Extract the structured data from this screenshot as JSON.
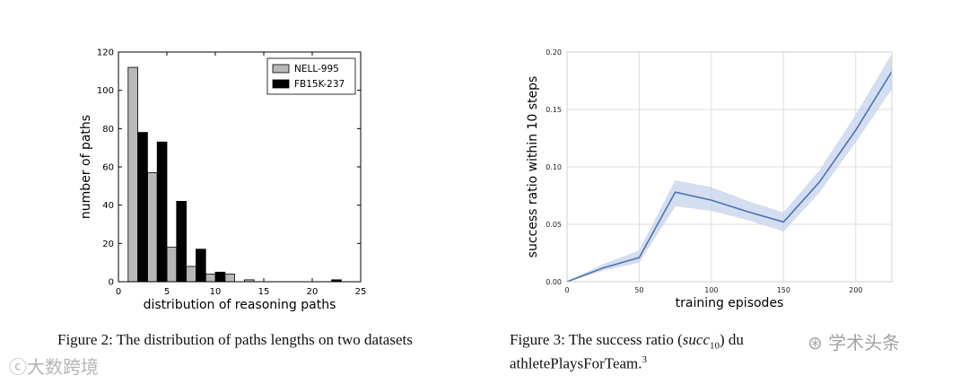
{
  "chart_data": [
    {
      "type": "bar",
      "xlabel": "distribution of reasoning paths",
      "ylabel": "number of paths",
      "xlim": [
        0,
        25
      ],
      "ylim": [
        0,
        120
      ],
      "xticks": [
        0,
        5,
        10,
        15,
        20,
        25
      ],
      "yticks": [
        0,
        20,
        40,
        60,
        80,
        100,
        120
      ],
      "legend_position": "top-right",
      "grid": false,
      "series": [
        {
          "name": "NELL-995",
          "color": "#b8b8b8",
          "points": [
            [
              2,
              112
            ],
            [
              4,
              57
            ],
            [
              6,
              18
            ],
            [
              8,
              8
            ],
            [
              10,
              4
            ],
            [
              12,
              4
            ],
            [
              14,
              1
            ],
            [
              16,
              0
            ],
            [
              18,
              0
            ],
            [
              20,
              0
            ],
            [
              22,
              0
            ]
          ]
        },
        {
          "name": "FB15K-237",
          "color": "#000000",
          "points": [
            [
              2,
              78
            ],
            [
              4,
              73
            ],
            [
              6,
              42
            ],
            [
              8,
              17
            ],
            [
              10,
              5
            ],
            [
              12,
              0
            ],
            [
              14,
              0
            ],
            [
              16,
              0
            ],
            [
              18,
              0
            ],
            [
              20,
              0
            ],
            [
              22,
              1
            ]
          ]
        }
      ]
    },
    {
      "type": "line",
      "xlabel": "training episodes",
      "ylabel": "success ratio within 10 steps",
      "xlim": [
        0,
        225
      ],
      "ylim": [
        0,
        0.2
      ],
      "xticks": [
        0,
        50,
        100,
        150,
        200
      ],
      "yticks": [
        "0.00",
        "0.05",
        "0.10",
        "0.15",
        "0.20"
      ],
      "grid": true,
      "line_color": "#4a72b8",
      "band_color": "#c5d3ec",
      "x": [
        0,
        25,
        50,
        75,
        100,
        125,
        150,
        175,
        200,
        225
      ],
      "y": [
        0,
        0.012,
        0.021,
        0.078,
        0.071,
        0.061,
        0.052,
        0.087,
        0.132,
        0.183
      ],
      "lower": [
        0,
        0.01,
        0.017,
        0.066,
        0.062,
        0.054,
        0.044,
        0.078,
        0.122,
        0.168
      ],
      "upper": [
        0,
        0.015,
        0.027,
        0.088,
        0.082,
        0.07,
        0.06,
        0.097,
        0.145,
        0.198
      ]
    }
  ],
  "captions": {
    "fig2": "Figure 2: The distribution of paths lengths on two datasets",
    "fig3_prefix": "Figure 3:  The success ratio (",
    "fig3_math": "succ",
    "fig3_sub": "10",
    "fig3_suffix": ") du",
    "fig3_tail": "athletePlaysForTeam.",
    "fig3_sup": "3"
  },
  "watermarks": {
    "bottom_left": "ⓒ大数跨境",
    "right": "⊛ 学术头条"
  }
}
